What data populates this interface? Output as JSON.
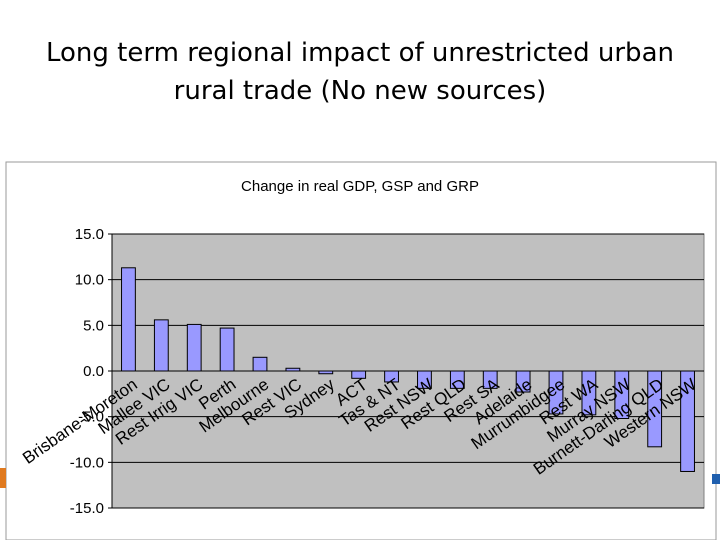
{
  "slide": {
    "title_line1": "Long term regional impact of unrestricted urban",
    "title_line2": "rural trade (No new sources)"
  },
  "colors": {
    "bar_fill": "#9999ff",
    "bar_stroke": "#000000",
    "plot_background": "#c0c0c0",
    "chart_background": "#ffffff",
    "gridline": "#000000",
    "accent_orange": "#e07a1f",
    "accent_blue": "#1f5fae"
  },
  "chart_data": {
    "type": "bar",
    "title": "Change in real GDP, GSP and GRP",
    "xlabel": "",
    "ylabel": "",
    "ylim": [
      -15,
      15
    ],
    "yticks": [
      15,
      10,
      5,
      0,
      -5,
      -10,
      -15
    ],
    "ytick_labels": [
      "15.0",
      "10.0",
      "5.0",
      "0.0",
      "-5.0",
      "-10.0",
      "-15.0"
    ],
    "grid": true,
    "legend": "none",
    "categories": [
      "Brisbane-Moreton",
      "Mallee VIC",
      "Rest Irrig VIC",
      "Perth",
      "Melbourne",
      "Rest VIC",
      "Sydney",
      "ACT",
      "Tas & NT",
      "Rest NSW",
      "Rest QLD",
      "Rest SA",
      "Adelaide",
      "Murrumbidgee",
      "Rest WA",
      "Murray NSW",
      "Burnett-Darling QLD",
      "Western NSW"
    ],
    "values": [
      11.3,
      5.6,
      5.1,
      4.7,
      1.5,
      0.3,
      -0.3,
      -0.8,
      -1.2,
      -1.9,
      -1.9,
      -1.9,
      -2.3,
      -4.7,
      -4.8,
      -5.2,
      -8.3,
      -11.0
    ]
  }
}
